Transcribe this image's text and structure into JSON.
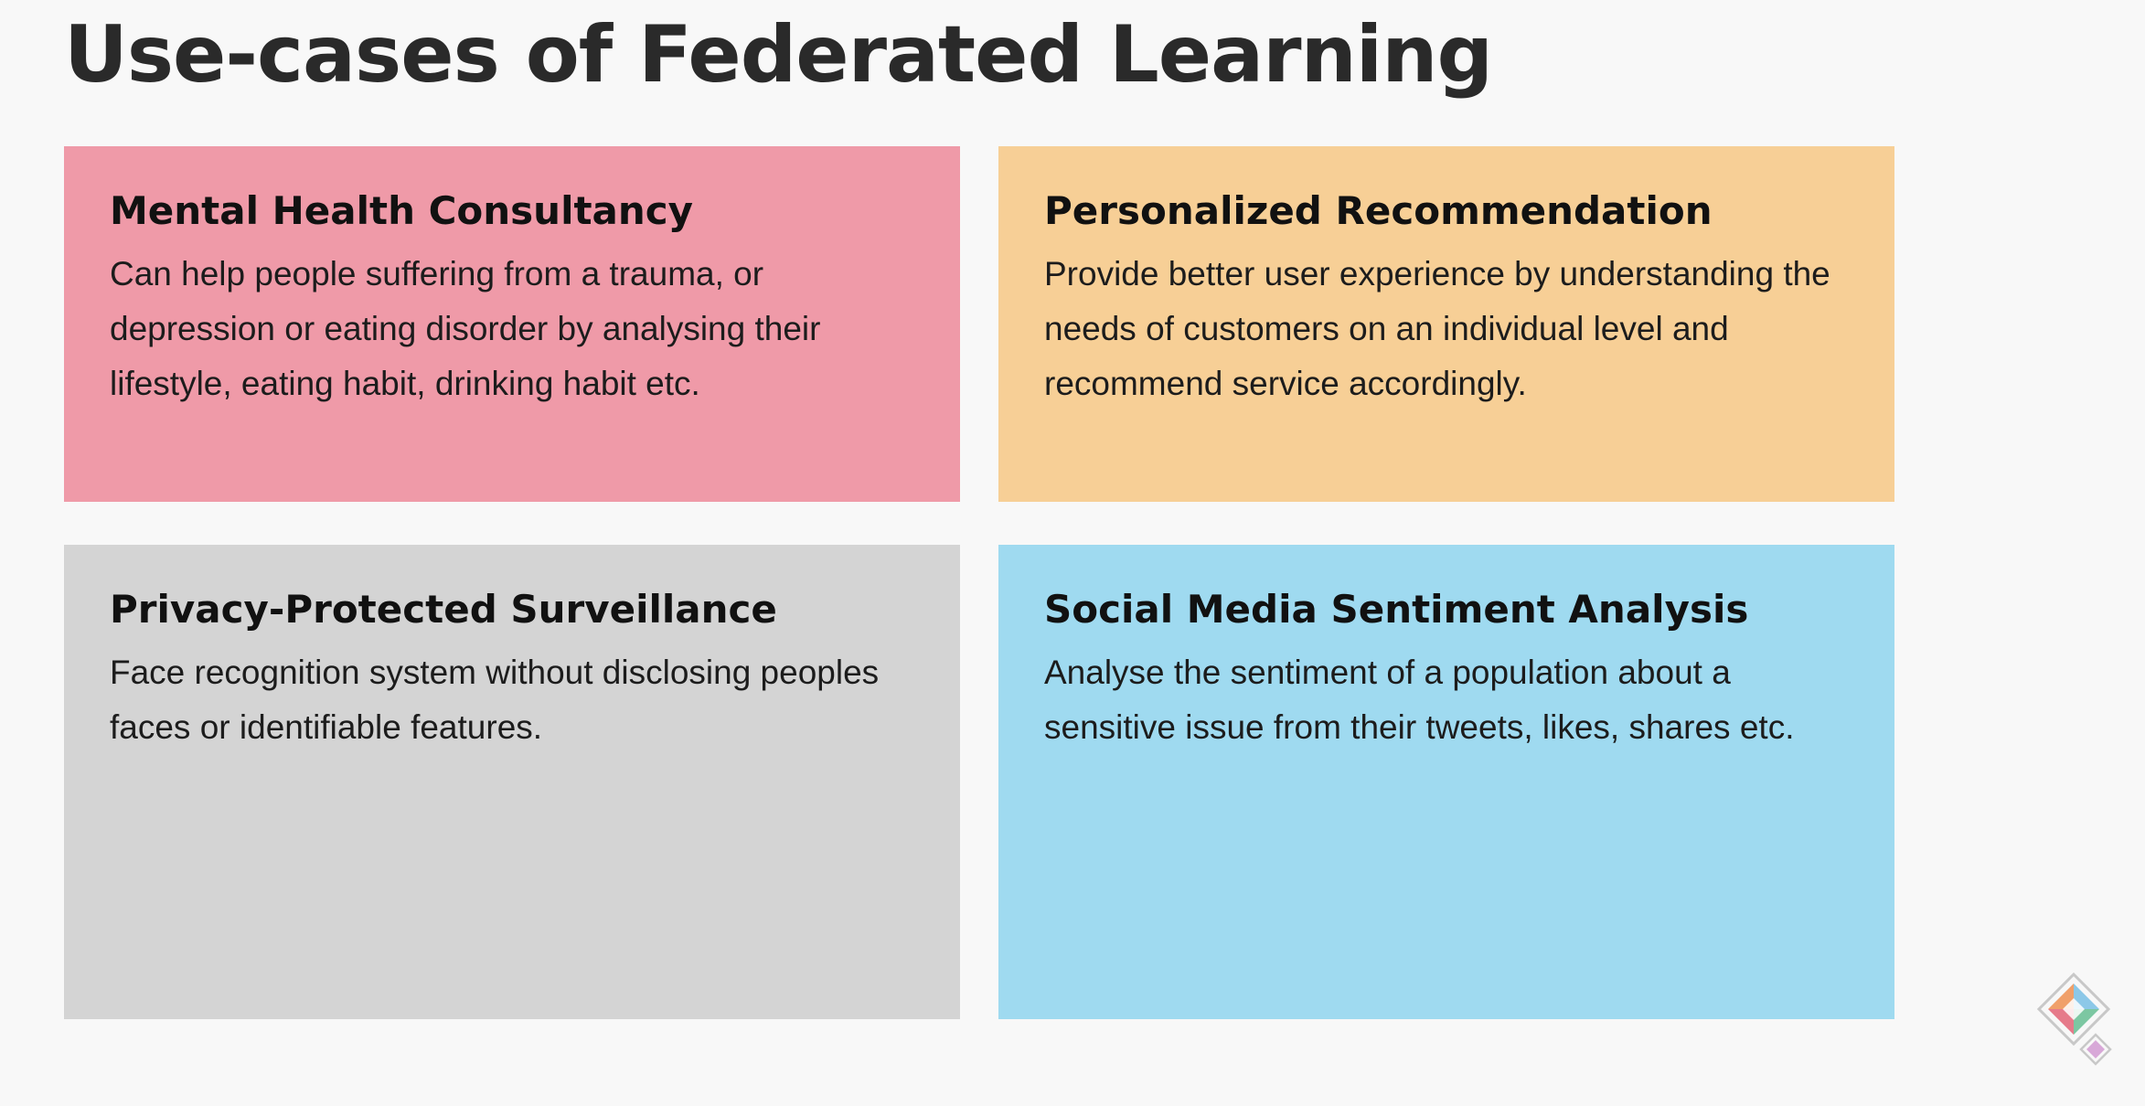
{
  "slide": {
    "title": "Use-cases of Federated Learning"
  },
  "cards": [
    {
      "title": "Mental Health Consultancy",
      "body": "Can help people suffering from a trauma, or depression or eating disorder by analysing their lifestyle, eating habit, drinking habit etc.",
      "color": "#ef9aa8"
    },
    {
      "title": "Personalized Recommendation",
      "body": "Provide better user experience by understanding the needs of customers on an individual level and recommend service accordingly.",
      "color": "#f7cf96"
    },
    {
      "title": "Privacy-Protected Surveillance",
      "body": "Face recognition system without disclosing peoples faces or identifiable features.",
      "color": "#d4d4d4"
    },
    {
      "title": "Social Media Sentiment Analysis",
      "body": "Analyse the sentiment of a population about a sensitive issue from their tweets, likes, shares etc.",
      "color": "#9fdaf0"
    }
  ],
  "logo": {
    "icon": "diamond-logo-icon"
  }
}
